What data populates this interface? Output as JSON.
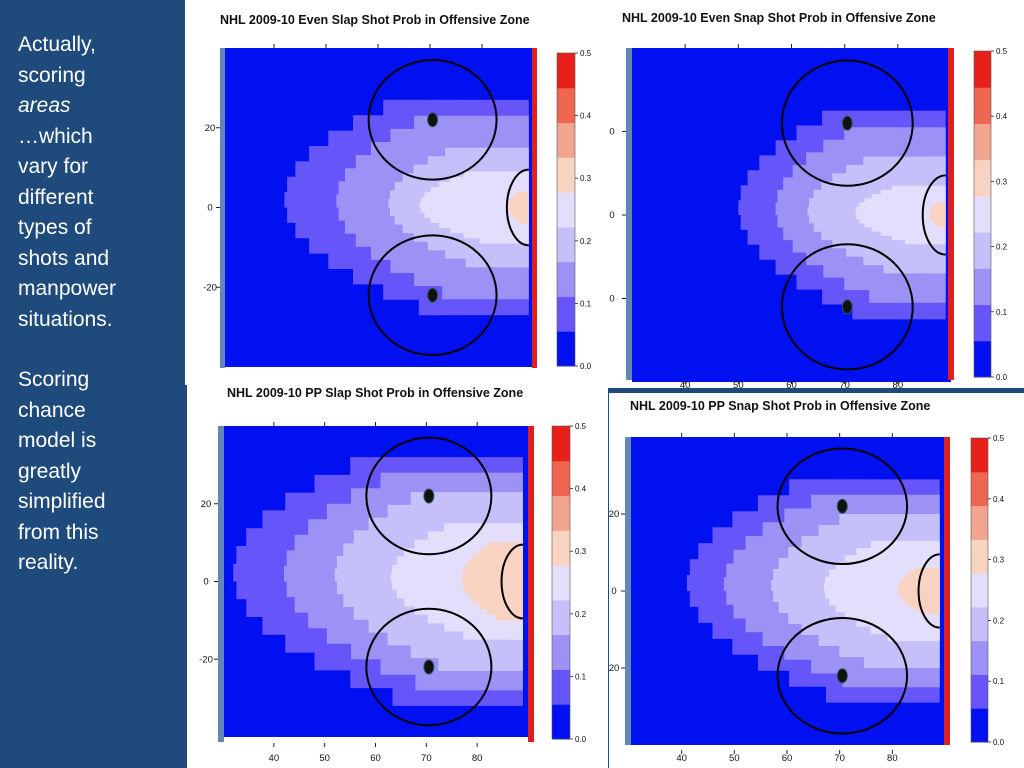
{
  "slide": {
    "lines": [
      "Actually,",
      "scoring",
      "areas",
      "…which",
      "vary for",
      "different",
      "types of",
      "shots and",
      "manpower",
      "situations."
    ],
    "emphasis_index": 2,
    "lines2": [
      "Scoring",
      "chance",
      "model is",
      "greatly",
      "simplified",
      "from this",
      "reality."
    ]
  },
  "colors": {
    "background": "#1f4a7c",
    "rink_board": "#6288b8",
    "goal_line": "#e0201c",
    "levels": [
      "#0010f0",
      "#6655f8",
      "#9c92f6",
      "#c6c0fa",
      "#e4defd",
      "#f9d3c2",
      "#f1a48f",
      "#ee6550",
      "#e8201a"
    ]
  },
  "chart_data": [
    {
      "type": "heatmap",
      "title": "NHL 2009-10 Even Slap Shot Prob in Offensive Zone",
      "x_ticks": [],
      "y_ticks": [
        "20",
        "0",
        "-20"
      ],
      "colorbar_ticks": [
        "0.0",
        "0.1",
        "0.2",
        "0.3",
        "0.4",
        "0.5"
      ],
      "value_range": [
        0,
        0.5
      ],
      "contours": [
        {
          "level": 0.05,
          "apex_x": 42,
          "half_width": 27
        },
        {
          "level": 0.1,
          "apex_x": 52,
          "half_width": 23
        },
        {
          "level": 0.15,
          "apex_x": 62,
          "half_width": 15
        },
        {
          "level": 0.2,
          "apex_x": 68,
          "half_width": 9
        },
        {
          "level": 0.25,
          "apex_x": 85,
          "half_width": 4
        }
      ]
    },
    {
      "type": "heatmap",
      "title": "NHL 2009-10 Even Snap Shot Prob in Offensive Zone",
      "x_ticks": [
        "40",
        "50",
        "60",
        "70",
        "80"
      ],
      "y_ticks": [
        "0",
        "0",
        "0"
      ],
      "colorbar_ticks": [
        "0.0",
        "0.1",
        "0.2",
        "0.3",
        "0.4",
        "0.5"
      ],
      "value_range": [
        0,
        0.5
      ],
      "contours": [
        {
          "level": 0.05,
          "apex_x": 50,
          "half_width": 25
        },
        {
          "level": 0.1,
          "apex_x": 57,
          "half_width": 21
        },
        {
          "level": 0.15,
          "apex_x": 63,
          "half_width": 14
        },
        {
          "level": 0.2,
          "apex_x": 72,
          "half_width": 7
        },
        {
          "level": 0.25,
          "apex_x": 86,
          "half_width": 3
        }
      ]
    },
    {
      "type": "heatmap",
      "title": "NHL 2009-10 PP Slap Shot Prob in Offensive Zone",
      "x_ticks": [
        "40",
        "50",
        "60",
        "70",
        "80"
      ],
      "y_ticks": [
        "20",
        "0",
        "-20"
      ],
      "colorbar_ticks": [
        "0.0",
        "0.1",
        "0.2",
        "0.3",
        "0.4",
        "0.5"
      ],
      "value_range": [
        0,
        0.5
      ],
      "contours": [
        {
          "level": 0.05,
          "apex_x": 32,
          "half_width": 32
        },
        {
          "level": 0.1,
          "apex_x": 42,
          "half_width": 28
        },
        {
          "level": 0.15,
          "apex_x": 52,
          "half_width": 23
        },
        {
          "level": 0.2,
          "apex_x": 63,
          "half_width": 15
        },
        {
          "level": 0.25,
          "apex_x": 77,
          "half_width": 10
        }
      ]
    },
    {
      "type": "heatmap",
      "title": "NHL 2009-10 PP Snap Shot Prob in Offensive Zone",
      "x_ticks": [
        "40",
        "50",
        "60",
        "70",
        "80"
      ],
      "y_ticks": [
        "20",
        "0",
        "20"
      ],
      "colorbar_ticks": [
        "0.0",
        "0.1",
        "0.2",
        "0.3",
        "0.4",
        "0.5"
      ],
      "value_range": [
        0,
        0.5
      ],
      "contours": [
        {
          "level": 0.05,
          "apex_x": 41,
          "half_width": 29
        },
        {
          "level": 0.1,
          "apex_x": 48,
          "half_width": 25
        },
        {
          "level": 0.15,
          "apex_x": 57,
          "half_width": 20
        },
        {
          "level": 0.2,
          "apex_x": 67,
          "half_width": 13
        },
        {
          "level": 0.25,
          "apex_x": 81,
          "half_width": 6
        }
      ]
    }
  ]
}
